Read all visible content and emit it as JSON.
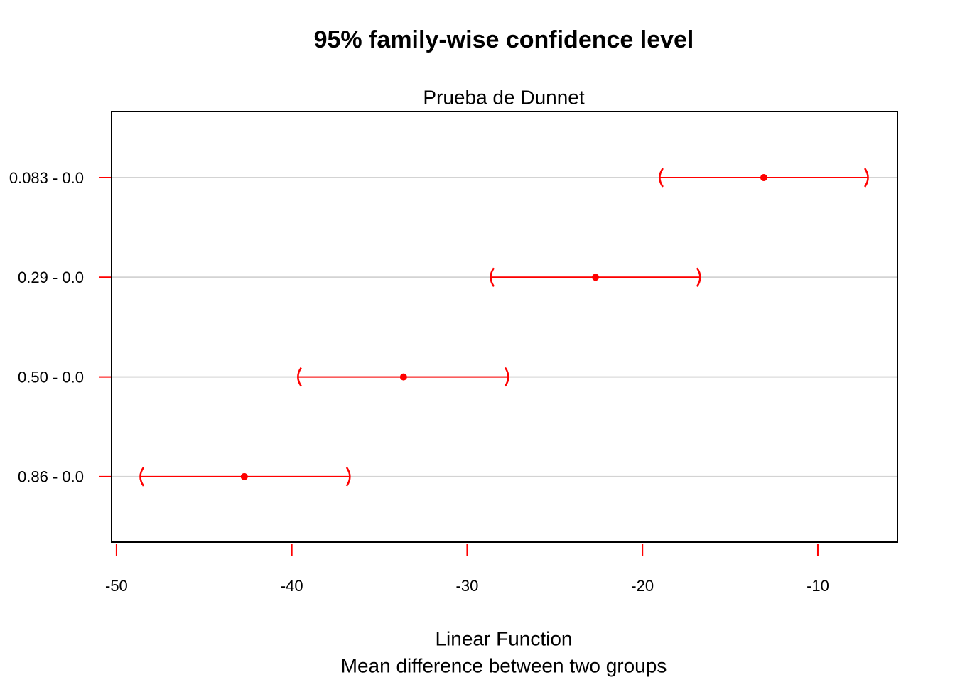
{
  "chart_data": {
    "type": "interval",
    "title": "95% family-wise confidence level",
    "subtitle": "Prueba de Dunnet",
    "xlabel": [
      "Linear Function",
      "Mean difference between two groups"
    ],
    "categories": [
      "0.083 - 0.0",
      "0.29 - 0.0",
      "0.50 - 0.0",
      "0.86 - 0.0"
    ],
    "values": [
      -13.08,
      -22.68,
      -33.63,
      -42.71
    ],
    "lower": [
      -19.0,
      -28.64,
      -39.63,
      -48.62
    ],
    "upper": [
      -7.16,
      -16.73,
      -27.67,
      -36.71
    ],
    "color": "#ff0000",
    "xlim": [
      -50.28,
      -5.46
    ],
    "xticks": [
      -50,
      -40,
      -30,
      -20,
      -10
    ],
    "grid": true
  }
}
